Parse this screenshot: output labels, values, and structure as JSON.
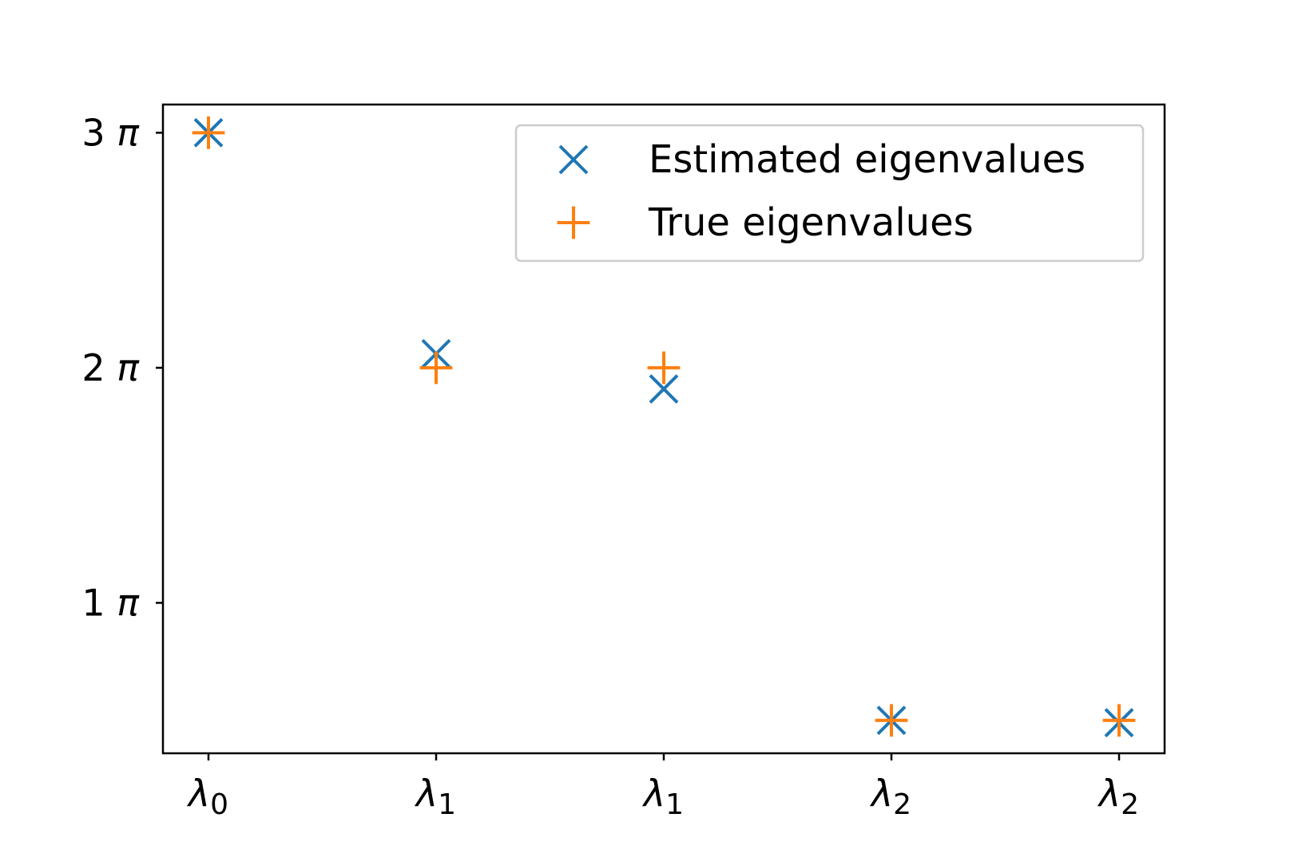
{
  "chart_data": {
    "type": "scatter",
    "categories": [
      "λ0",
      "λ1",
      "λ1",
      "λ2",
      "λ2"
    ],
    "x_ticks": [
      {
        "base": "λ",
        "sub": "0"
      },
      {
        "base": "λ",
        "sub": "1"
      },
      {
        "base": "λ",
        "sub": "1"
      },
      {
        "base": "λ",
        "sub": "2"
      },
      {
        "base": "λ",
        "sub": "2"
      }
    ],
    "y_unit": "π",
    "y_ticks": [
      {
        "value": 1,
        "label": "1 π"
      },
      {
        "value": 2,
        "label": "2 π"
      },
      {
        "value": 3,
        "label": "3 π"
      }
    ],
    "ylim": [
      0.36,
      3.12
    ],
    "series": [
      {
        "name": "Estimated eigenvalues",
        "marker": "x",
        "color": "#1f77b4",
        "values": [
          3.0,
          2.06,
          1.91,
          0.5,
          0.49
        ]
      },
      {
        "name": "True eigenvalues",
        "marker": "+",
        "color": "#ff7f0e",
        "values": [
          3.0,
          2.0,
          2.0,
          0.5,
          0.5
        ]
      }
    ],
    "legend": {
      "placement": "top-right"
    },
    "grid": false,
    "title": "",
    "xlabel": "",
    "ylabel": ""
  }
}
